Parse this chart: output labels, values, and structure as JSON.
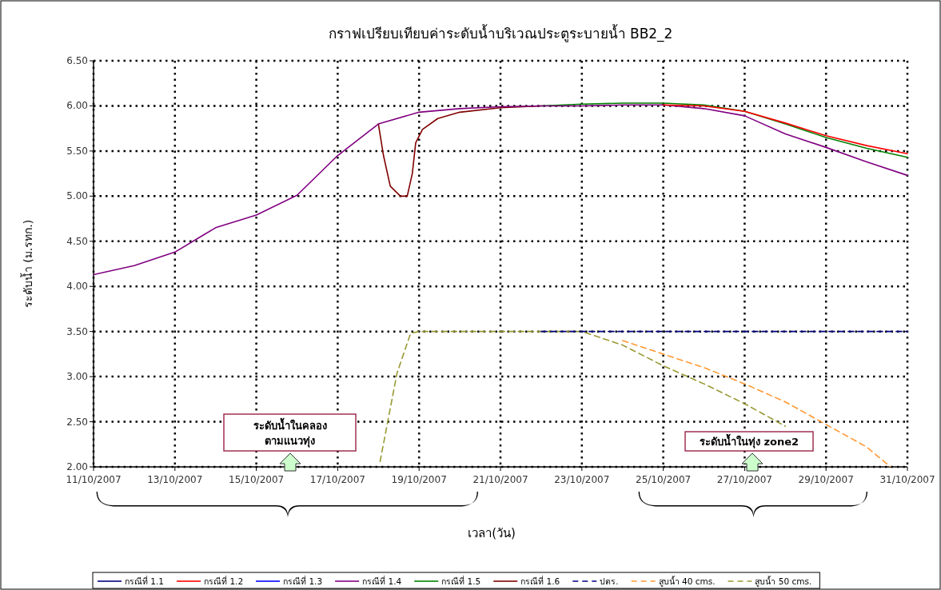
{
  "chart_data": {
    "type": "line",
    "title": "กราฟเปรียบเทียบค่าระดับน้ำบริเวณประตูระบายน้ำ BB2_2",
    "xlabel": "เวลา(วัน)",
    "ylabel": "ระดับน้ำ (ม.รทก.)",
    "x": [
      "2007-10-11",
      "2007-10-12",
      "2007-10-13",
      "2007-10-14",
      "2007-10-15",
      "2007-10-16",
      "2007-10-17",
      "2007-10-18",
      "2007-10-19",
      "2007-10-20",
      "2007-10-21",
      "2007-10-22",
      "2007-10-23",
      "2007-10-24",
      "2007-10-25",
      "2007-10-26",
      "2007-10-27",
      "2007-10-28",
      "2007-10-29",
      "2007-10-30",
      "2007-10-31"
    ],
    "series": [
      {
        "name": "กรณีที่ 1.1",
        "color": "#000080",
        "values": [
          null,
          null,
          null,
          null,
          null,
          null,
          null,
          null,
          null,
          null,
          null,
          null,
          null,
          null,
          null,
          null,
          null,
          null,
          null,
          null,
          null
        ]
      },
      {
        "name": "กรณีที่ 1.2",
        "color": "#ff0000",
        "values": [
          null,
          null,
          null,
          null,
          null,
          null,
          null,
          null,
          null,
          null,
          null,
          null,
          null,
          null,
          6.01,
          6.0,
          5.94,
          5.81,
          5.67,
          5.56,
          5.47
        ]
      },
      {
        "name": "กรณีที่ 1.3",
        "color": "#0000ff",
        "values": [
          null,
          null,
          null,
          null,
          null,
          null,
          null,
          null,
          null,
          null,
          null,
          null,
          null,
          null,
          null,
          null,
          null,
          null,
          null,
          null,
          null
        ]
      },
      {
        "name": "กรณีที่ 1.4",
        "color": "#800080",
        "values": [
          4.13,
          4.23,
          4.38,
          4.65,
          4.79,
          5.01,
          5.45,
          5.8,
          5.93,
          5.97,
          5.99,
          6.0,
          6.0,
          6.01,
          6.01,
          5.97,
          5.89,
          5.69,
          5.54,
          5.38,
          5.23
        ]
      },
      {
        "name": "กรณีที่ 1.5",
        "color": "#008000",
        "values": [
          null,
          null,
          null,
          null,
          null,
          null,
          null,
          null,
          null,
          null,
          null,
          6.0,
          6.02,
          6.03,
          6.03,
          6.01,
          5.94,
          5.8,
          5.65,
          5.53,
          5.43
        ]
      },
      {
        "name": "กรณีที่ 1.6",
        "color": "#800000",
        "x": [
          "2007-10-18",
          "2007-10-18T03:00",
          "2007-10-18T07:00",
          "2007-10-18T13:00",
          "2007-10-18T17:00",
          "2007-10-18T20:00",
          "2007-10-18T22:00",
          "2007-10-19T02:00",
          "2007-10-19T11:00",
          "2007-10-20",
          "2007-10-21",
          "2007-10-22"
        ],
        "values": [
          5.8,
          5.45,
          5.11,
          5.0,
          5.0,
          5.25,
          5.59,
          5.74,
          5.86,
          5.93,
          5.98,
          6.0
        ]
      },
      {
        "name": "ปตร.",
        "color": "#000080",
        "line_style": "dashed",
        "x": [
          "2007-10-22",
          "2007-10-31"
        ],
        "values": [
          3.5,
          3.5
        ]
      },
      {
        "name": "สูบน้ำ 40 cms.",
        "color": "#ff9933",
        "line_style": "dashed",
        "x": [
          "2007-10-24",
          "2007-10-25",
          "2007-10-26",
          "2007-10-27",
          "2007-10-28",
          "2007-10-29",
          "2007-10-30",
          "2007-10-30T14:00"
        ],
        "values": [
          3.4,
          3.25,
          3.1,
          2.92,
          2.72,
          2.47,
          2.22,
          2.0
        ]
      },
      {
        "name": "สูบน้ำ 50 cms.",
        "color": "#999933",
        "line_style": "dashed",
        "x": [
          "2007-10-18T01:00",
          "2007-10-18T11:00",
          "2007-10-18T19:00",
          "2007-10-19",
          "2007-10-21",
          "2007-10-23",
          "2007-10-24",
          "2007-10-25",
          "2007-10-26",
          "2007-10-27",
          "2007-10-28"
        ],
        "values": [
          2.06,
          3.04,
          3.48,
          3.5,
          3.5,
          3.5,
          3.35,
          3.12,
          2.92,
          2.7,
          2.45
        ]
      }
    ],
    "xlim": [
      "2007-10-11",
      "2007-10-31"
    ],
    "xticks": [
      {
        "value": "2007-10-11",
        "label": "11/10/2007"
      },
      {
        "value": "2007-10-13",
        "label": "13/10/2007"
      },
      {
        "value": "2007-10-15",
        "label": "15/10/2007"
      },
      {
        "value": "2007-10-17",
        "label": "17/10/2007"
      },
      {
        "value": "2007-10-19",
        "label": "19/10/2007"
      },
      {
        "value": "2007-10-21",
        "label": "21/10/2007"
      },
      {
        "value": "2007-10-23",
        "label": "23/10/2007"
      },
      {
        "value": "2007-10-25",
        "label": "25/10/2007"
      },
      {
        "value": "2007-10-27",
        "label": "27/10/2007"
      },
      {
        "value": "2007-10-29",
        "label": "29/10/2007"
      },
      {
        "value": "2007-10-31",
        "label": "31/10/2007"
      }
    ],
    "ylim": [
      2,
      6.5
    ],
    "yticks": [
      {
        "value": 2,
        "label": "2.00"
      },
      {
        "value": 2.5,
        "label": "2.50"
      },
      {
        "value": 3,
        "label": "3.00"
      },
      {
        "value": 3.5,
        "label": "3.50"
      },
      {
        "value": 4,
        "label": "4.00"
      },
      {
        "value": 4.5,
        "label": "4.50"
      },
      {
        "value": 5,
        "label": "5.00"
      },
      {
        "value": 5.5,
        "label": "5.50"
      },
      {
        "value": 6,
        "label": "6.00"
      },
      {
        "value": 6.5,
        "label": "6.50"
      }
    ],
    "grid": true,
    "legend": "bottom",
    "line_style": "solid",
    "annotations": [
      "ระดับน้ำในคลอง ตามแนวทุ่ง",
      "ระดับน้ำในทุ่ง zone2"
    ]
  }
}
